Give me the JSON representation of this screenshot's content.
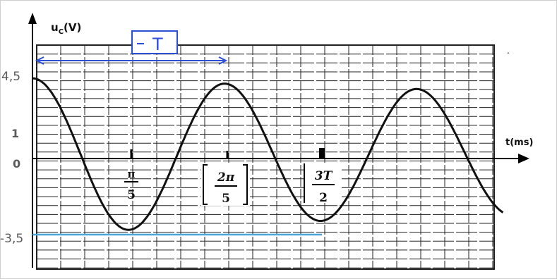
{
  "chart_data": {
    "type": "line",
    "xlabel": "t(ms)",
    "ylabel_main": "u",
    "ylabel_sub": "C",
    "ylabel_unit": "(V)",
    "y_ticks": [
      {
        "value": 4.5,
        "label": "4,5"
      },
      {
        "value": 1,
        "label": "1"
      },
      {
        "value": 0,
        "label": "0"
      },
      {
        "value": -3.5,
        "label": "-3,5"
      }
    ],
    "x_annotations": [
      {
        "x_fraction_of_T": 0.5,
        "num": "π",
        "den": "5",
        "bracketed": false
      },
      {
        "x_fraction_of_T": 1.0,
        "num": "2π",
        "den": "5",
        "bracketed": true
      },
      {
        "x_fraction_of_T": 1.5,
        "num": "3T",
        "den": "2",
        "bracketed": "left"
      }
    ],
    "period_label": "T",
    "series": [
      {
        "color": "#111111",
        "form": "damped cosine",
        "initial_value": 4.5,
        "maxima": [
          {
            "t_over_T": 0,
            "u": 4.5
          },
          {
            "t_over_T": 1,
            "u": 4.2
          },
          {
            "t_over_T": 2,
            "u": 3.9
          }
        ],
        "minima": [
          {
            "t_over_T": 0.5,
            "u": -4.0
          },
          {
            "t_over_T": 1.5,
            "u": -3.5
          }
        ]
      }
    ],
    "xlim_periods": [
      0,
      2.45
    ],
    "ylim": [
      -5.2,
      6.0
    ],
    "grid": true
  },
  "colors": {
    "curve": "#111111",
    "grid": "#222222",
    "period_arrow": "#2d4fd6",
    "min_line": "#4aa6d8",
    "tick_text": "#5a5a5a"
  }
}
